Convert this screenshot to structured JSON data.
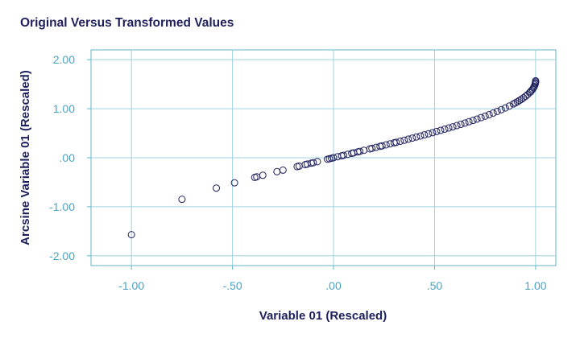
{
  "chart_data": {
    "type": "scatter",
    "title": "Original Versus Transformed Values",
    "xlabel": "Variable 01 (Rescaled)",
    "ylabel": "Arcsine Variable 01 (Rescaled)",
    "xlim": [
      -1.2,
      1.1
    ],
    "ylim": [
      -2.2,
      2.2
    ],
    "x_ticks": [
      -1.0,
      -0.5,
      0.0,
      0.5,
      1.0
    ],
    "x_tick_labels": [
      "-1.00",
      "-.50",
      ".00",
      ".50",
      "1.00"
    ],
    "y_ticks": [
      2.0,
      1.0,
      0.0,
      -1.0,
      -2.0
    ],
    "y_tick_labels": [
      "2.00",
      "1.00",
      ".00",
      "-1.00",
      "-2.00"
    ],
    "grid": true,
    "points": [
      [
        -1.0,
        -1.57
      ],
      [
        -0.75,
        -0.848
      ],
      [
        -0.58,
        -0.619
      ],
      [
        -0.49,
        -0.512
      ],
      [
        -0.39,
        -0.401
      ],
      [
        -0.38,
        -0.39
      ],
      [
        -0.35,
        -0.358
      ],
      [
        -0.28,
        -0.284
      ],
      [
        -0.25,
        -0.253
      ],
      [
        -0.18,
        -0.181
      ],
      [
        -0.17,
        -0.171
      ],
      [
        -0.14,
        -0.14
      ],
      [
        -0.13,
        -0.13
      ],
      [
        -0.11,
        -0.11
      ],
      [
        -0.1,
        -0.1
      ],
      [
        -0.08,
        -0.08
      ],
      [
        -0.03,
        -0.03
      ],
      [
        -0.02,
        -0.02
      ],
      [
        -0.01,
        -0.01
      ],
      [
        0.0,
        0.0
      ],
      [
        0.02,
        0.02
      ],
      [
        0.04,
        0.04
      ],
      [
        0.05,
        0.05
      ],
      [
        0.07,
        0.07
      ],
      [
        0.09,
        0.09
      ],
      [
        0.1,
        0.1
      ],
      [
        0.12,
        0.12
      ],
      [
        0.13,
        0.13
      ],
      [
        0.15,
        0.151
      ],
      [
        0.18,
        0.181
      ],
      [
        0.19,
        0.191
      ],
      [
        0.21,
        0.212
      ],
      [
        0.23,
        0.232
      ],
      [
        0.24,
        0.242
      ],
      [
        0.26,
        0.263
      ],
      [
        0.28,
        0.284
      ],
      [
        0.3,
        0.305
      ],
      [
        0.31,
        0.315
      ],
      [
        0.33,
        0.336
      ],
      [
        0.35,
        0.358
      ],
      [
        0.37,
        0.379
      ],
      [
        0.39,
        0.401
      ],
      [
        0.41,
        0.423
      ],
      [
        0.43,
        0.444
      ],
      [
        0.45,
        0.467
      ],
      [
        0.47,
        0.489
      ],
      [
        0.49,
        0.512
      ],
      [
        0.51,
        0.535
      ],
      [
        0.53,
        0.559
      ],
      [
        0.55,
        0.582
      ],
      [
        0.57,
        0.607
      ],
      [
        0.59,
        0.631
      ],
      [
        0.61,
        0.656
      ],
      [
        0.63,
        0.681
      ],
      [
        0.65,
        0.707
      ],
      [
        0.67,
        0.734
      ],
      [
        0.69,
        0.761
      ],
      [
        0.71,
        0.789
      ],
      [
        0.73,
        0.818
      ],
      [
        0.75,
        0.848
      ],
      [
        0.77,
        0.879
      ],
      [
        0.79,
        0.912
      ],
      [
        0.81,
        0.945
      ],
      [
        0.83,
        0.98
      ],
      [
        0.85,
        1.016
      ],
      [
        0.87,
        1.055
      ],
      [
        0.89,
        1.097
      ],
      [
        0.9,
        1.12
      ],
      [
        0.91,
        1.143
      ],
      [
        0.92,
        1.168
      ],
      [
        0.93,
        1.194
      ],
      [
        0.94,
        1.223
      ],
      [
        0.95,
        1.253
      ],
      [
        0.96,
        1.287
      ],
      [
        0.97,
        1.326
      ],
      [
        0.975,
        1.347
      ],
      [
        0.98,
        1.371
      ],
      [
        0.985,
        1.397
      ],
      [
        0.99,
        1.429
      ],
      [
        0.993,
        1.452
      ],
      [
        0.996,
        1.481
      ],
      [
        0.998,
        1.507
      ],
      [
        0.999,
        1.526
      ],
      [
        1.0,
        1.55
      ],
      [
        1.0,
        1.57
      ]
    ]
  },
  "colors": {
    "point_stroke": "#1d1f5c",
    "plot_border": "#5fb4c9",
    "grid": "#9fd2df",
    "tick_label": "#4aa3c4",
    "axis_label": "#1d1f5c"
  }
}
